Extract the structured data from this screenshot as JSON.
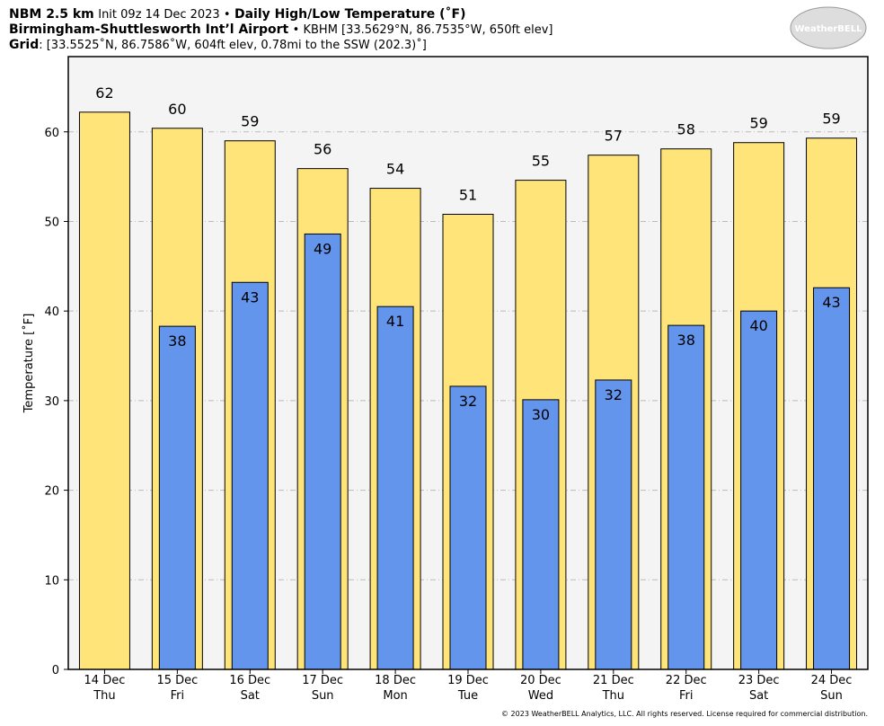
{
  "chart_data": {
    "type": "bar",
    "title": [
      "NBM 2.5 km",
      "Init 09z 14 Dec 2023 •",
      "Daily High/Low Temperature (˚F)"
    ],
    "subtitle": [
      "Birmingham-Shuttlesworth Int’l Airport",
      "• KBHM [33.5629°N, 86.7535°W, 650ft elev]"
    ],
    "grid_info": [
      "Grid",
      ": [33.5525˚N, 86.7586˚W, 604ft elev, 0.78mi to the SSW (202.3)˚]"
    ],
    "logo": "WeatherBELL",
    "footer": "© 2023 WeatherBELL Analytics, LLC. All rights reserved. License required for commercial distribution.",
    "y_label": "Temperature [˚F]",
    "categories": [
      "14 Dec",
      "15 Dec",
      "16 Dec",
      "17 Dec",
      "18 Dec",
      "19 Dec",
      "20 Dec",
      "21 Dec",
      "22 Dec",
      "23 Dec",
      "24 Dec"
    ],
    "weekdays": [
      "Thu",
      "Fri",
      "Sat",
      "Sun",
      "Mon",
      "Tue",
      "Wed",
      "Thu",
      "Fri",
      "Sat",
      "Sun"
    ],
    "series": [
      {
        "name": "High",
        "color": "#ffe47a",
        "values": [
          62.2,
          60.4,
          59.0,
          55.9,
          53.7,
          50.8,
          54.6,
          57.4,
          58.1,
          58.8,
          59.3
        ],
        "value_labels": [
          "62",
          "60",
          "59",
          "56",
          "54",
          "51",
          "55",
          "57",
          "58",
          "59",
          "59"
        ]
      },
      {
        "name": "Low",
        "color": "#6495ed",
        "values": [
          null,
          38.3,
          43.2,
          48.6,
          40.5,
          31.6,
          30.1,
          32.3,
          38.4,
          40.0,
          42.6
        ],
        "value_labels": [
          null,
          "38",
          "43",
          "49",
          "41",
          "32",
          "30",
          "32",
          "38",
          "40",
          "43"
        ]
      }
    ],
    "ylim": [
      0,
      68.4
    ],
    "yticks": [
      0,
      10,
      20,
      30,
      40,
      50,
      60
    ],
    "grid": true
  }
}
